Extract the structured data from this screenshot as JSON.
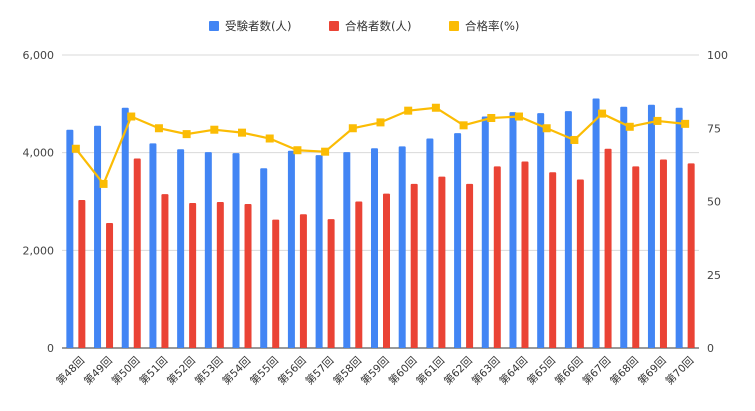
{
  "chart_data": {
    "type": "bar",
    "categories": [
      "第48回",
      "第49回",
      "第50回",
      "第51回",
      "第52回",
      "第53回",
      "第54回",
      "第55回",
      "第56回",
      "第57回",
      "第58回",
      "第59回",
      "第60回",
      "第61回",
      "第62回",
      "第63回",
      "第64回",
      "第65回",
      "第66回",
      "第67回",
      "第68回",
      "第69回",
      "第70回"
    ],
    "series": [
      {
        "name": "受験者数(人)",
        "kind": "bar",
        "axis": "left",
        "color": "#4285f4",
        "values": [
          4470,
          4550,
          4920,
          4190,
          4070,
          4010,
          3990,
          3680,
          4040,
          3950,
          4010,
          4090,
          4130,
          4290,
          4400,
          4740,
          4830,
          4810,
          4850,
          5110,
          4940,
          4980,
          4920
        ]
      },
      {
        "name": "合格者数(人)",
        "kind": "bar",
        "axis": "left",
        "color": "#ea4335",
        "values": [
          3030,
          2560,
          3880,
          3150,
          2970,
          2990,
          2950,
          2630,
          2740,
          2640,
          3000,
          3160,
          3360,
          3510,
          3360,
          3720,
          3820,
          3600,
          3450,
          4080,
          3720,
          3860,
          3780
        ]
      },
      {
        "name": "合格率(%)",
        "kind": "line",
        "axis": "right",
        "color": "#fbbc04",
        "values": [
          68,
          56,
          79,
          75,
          73,
          74.5,
          73.5,
          71.5,
          67.5,
          67,
          75,
          77,
          81,
          82,
          76,
          78.5,
          79,
          75,
          71,
          80,
          75.5,
          77.5,
          76.5
        ]
      }
    ],
    "y_left": {
      "min": 0,
      "max": 6000,
      "ticks": [
        0,
        2000,
        4000,
        6000
      ],
      "tick_labels": [
        "0",
        "2,000",
        "4,000",
        "6,000"
      ]
    },
    "y_right": {
      "min": 0,
      "max": 100,
      "ticks": [
        0,
        25,
        50,
        75,
        100
      ],
      "tick_labels": [
        "0",
        "25",
        "50",
        "75",
        "100"
      ]
    },
    "legend_position": "top-center",
    "grid": true
  }
}
